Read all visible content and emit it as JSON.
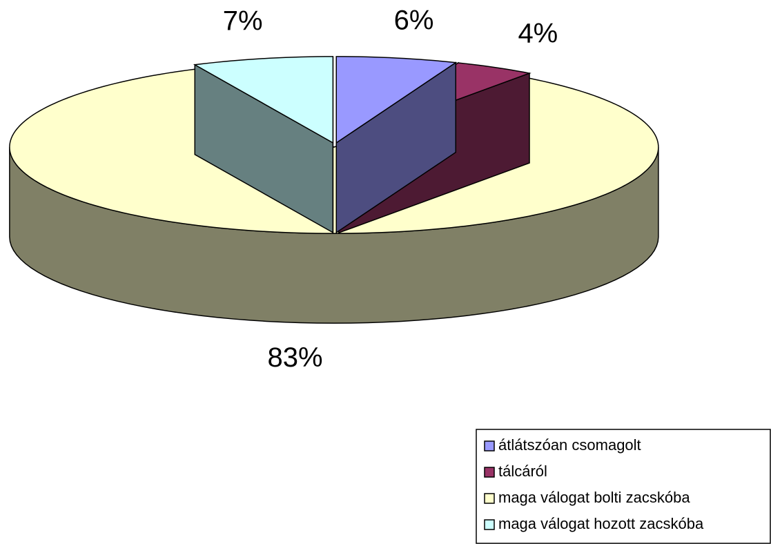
{
  "chart_data": {
    "type": "pie3d",
    "categories": [
      "átlátszóan csomagolt",
      "tálcáról",
      "maga válogat bolti zacskóba",
      "maga válogat hozott zacskóba"
    ],
    "values": [
      6,
      4,
      83,
      7
    ],
    "value_labels": [
      "6%",
      "4%",
      "83%",
      "7%"
    ],
    "colors": [
      "#9999ff",
      "#993366",
      "#ffffcc",
      "#ccffff"
    ],
    "legend": "bottom-right"
  }
}
